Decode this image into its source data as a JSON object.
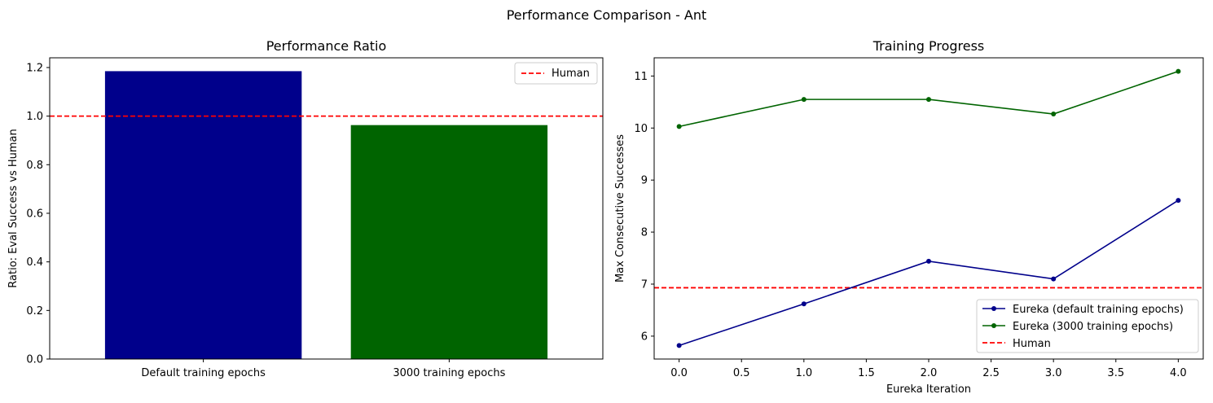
{
  "figure": {
    "suptitle": "Performance Comparison - Ant"
  },
  "colors": {
    "default": "#00008b",
    "epochs3000": "#006400",
    "human": "#ff0000"
  },
  "chart_data": [
    {
      "type": "bar",
      "title": "Performance Ratio",
      "xlabel": "",
      "ylabel": "Ratio: Eval Success vs Human",
      "categories": [
        "Default training epochs",
        "3000 training epochs"
      ],
      "values": [
        1.185,
        0.963
      ],
      "bar_colors": [
        "#00008b",
        "#006400"
      ],
      "ylim": [
        0,
        1.24
      ],
      "yticks": [
        0.0,
        0.2,
        0.4,
        0.6,
        0.8,
        1.0,
        1.2
      ],
      "ytick_labels": [
        "0.0",
        "0.2",
        "0.4",
        "0.6",
        "0.8",
        "1.0",
        "1.2"
      ],
      "reference_line": {
        "name": "Human",
        "y": 1.0,
        "color": "#ff0000",
        "style": "dashed"
      },
      "legend": {
        "placement": "upper right",
        "entries": [
          "Human"
        ]
      },
      "grid": false
    },
    {
      "type": "line",
      "title": "Training Progress",
      "xlabel": "Eureka Iteration",
      "ylabel": "Max Consecutive Successes",
      "x": [
        0,
        1,
        2,
        3,
        4
      ],
      "series": [
        {
          "name": "Eureka (default training epochs)",
          "values": [
            5.82,
            6.62,
            7.44,
            7.1,
            8.61
          ],
          "color": "#00008b",
          "marker": "circle"
        },
        {
          "name": "Eureka (3000 training epochs)",
          "values": [
            10.03,
            10.55,
            10.55,
            10.27,
            11.09
          ],
          "color": "#006400",
          "marker": "circle"
        }
      ],
      "reference_line": {
        "name": "Human",
        "y": 6.93,
        "color": "#ff0000",
        "style": "dashed"
      },
      "xlim": [
        -0.2,
        4.2
      ],
      "ylim": [
        5.56,
        11.35
      ],
      "xticks": [
        0.0,
        0.5,
        1.0,
        1.5,
        2.0,
        2.5,
        3.0,
        3.5,
        4.0
      ],
      "xtick_labels": [
        "0.0",
        "0.5",
        "1.0",
        "1.5",
        "2.0",
        "2.5",
        "3.0",
        "3.5",
        "4.0"
      ],
      "yticks": [
        6,
        7,
        8,
        9,
        10,
        11
      ],
      "ytick_labels": [
        "6",
        "7",
        "8",
        "9",
        "10",
        "11"
      ],
      "legend": {
        "placement": "lower right",
        "entries": [
          "Eureka (default training epochs)",
          "Eureka (3000 training epochs)",
          "Human"
        ]
      },
      "grid": false
    }
  ]
}
